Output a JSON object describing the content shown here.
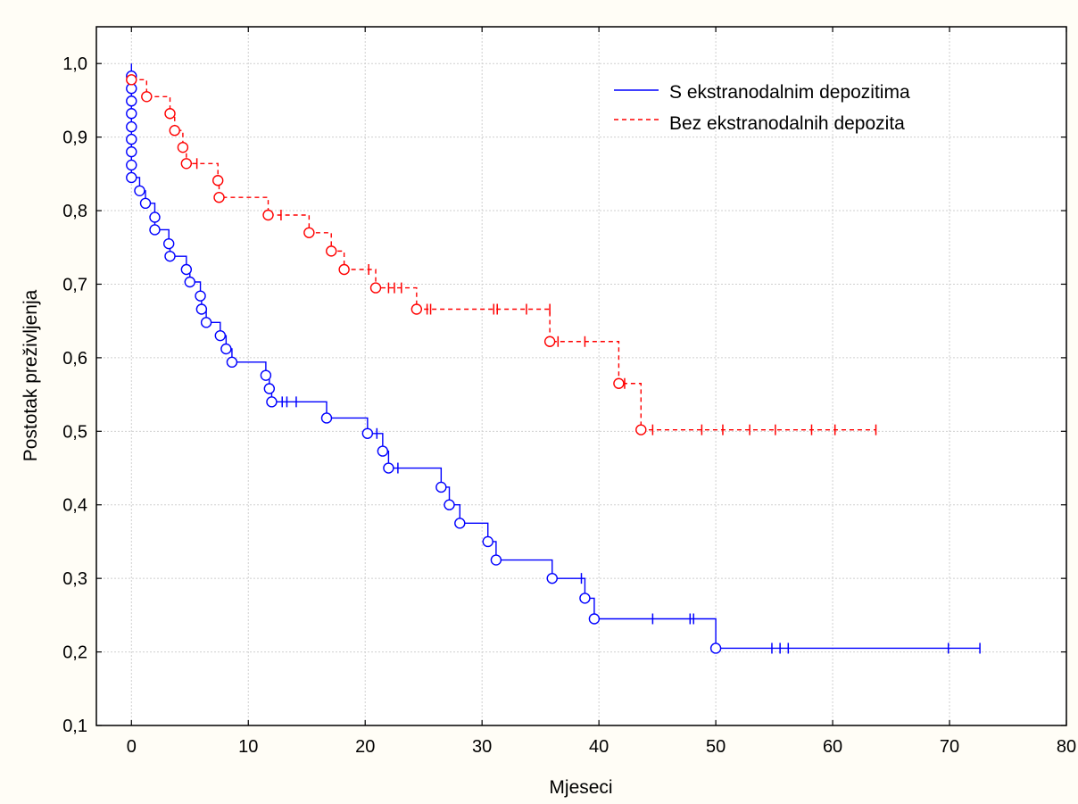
{
  "chart_data": {
    "type": "line",
    "subtype": "kaplan-meier",
    "xlabel": "Mjeseci",
    "ylabel": "Postotak preživljenja",
    "xlim": [
      -3,
      80
    ],
    "ylim": [
      0.1,
      1.05
    ],
    "xticks": [
      0,
      10,
      20,
      30,
      40,
      50,
      60,
      70,
      80
    ],
    "xtick_labels": [
      "0",
      "10",
      "20",
      "30",
      "40",
      "50",
      "60",
      "70",
      "80"
    ],
    "yticks": [
      0.1,
      0.2,
      0.3,
      0.4,
      0.5,
      0.6,
      0.7,
      0.8,
      0.9,
      1.0
    ],
    "ytick_labels": [
      "0,1",
      "0,2",
      "0,3",
      "0,4",
      "0,5",
      "0,6",
      "0,7",
      "0,8",
      "0,9",
      "1,0"
    ],
    "grid": true,
    "legend_position": "top-right",
    "series": [
      {
        "name": "S ekstranodalnim depozitima",
        "color": "#0000ff",
        "line_style": "solid",
        "steps": [
          [
            0,
            1.0
          ],
          [
            0,
            0.845
          ],
          [
            0.7,
            0.827
          ],
          [
            1.2,
            0.81
          ],
          [
            2.0,
            0.791
          ],
          [
            2.0,
            0.774
          ],
          [
            3.2,
            0.755
          ],
          [
            3.3,
            0.738
          ],
          [
            4.7,
            0.72
          ],
          [
            5.0,
            0.703
          ],
          [
            5.9,
            0.684
          ],
          [
            6.0,
            0.666
          ],
          [
            6.4,
            0.648
          ],
          [
            7.6,
            0.63
          ],
          [
            8.1,
            0.612
          ],
          [
            8.6,
            0.594
          ],
          [
            11.5,
            0.576
          ],
          [
            11.8,
            0.558
          ],
          [
            12.0,
            0.54
          ],
          [
            16.7,
            0.518
          ],
          [
            20.2,
            0.497
          ],
          [
            21.5,
            0.473
          ],
          [
            22.0,
            0.45
          ],
          [
            26.5,
            0.424
          ],
          [
            27.2,
            0.4
          ],
          [
            28.1,
            0.375
          ],
          [
            30.5,
            0.35
          ],
          [
            31.2,
            0.325
          ],
          [
            36.0,
            0.3
          ],
          [
            38.8,
            0.273
          ],
          [
            39.6,
            0.245
          ],
          [
            50.0,
            0.205
          ],
          [
            72.6,
            0.205
          ]
        ],
        "events": [
          [
            0,
            0.983
          ],
          [
            0,
            0.966
          ],
          [
            0,
            0.949
          ],
          [
            0,
            0.932
          ],
          [
            0,
            0.914
          ],
          [
            0,
            0.897
          ],
          [
            0,
            0.88
          ],
          [
            0,
            0.862
          ],
          [
            0,
            0.845
          ],
          [
            0.7,
            0.827
          ],
          [
            1.2,
            0.81
          ],
          [
            2.0,
            0.791
          ],
          [
            2.0,
            0.774
          ],
          [
            3.2,
            0.755
          ],
          [
            3.3,
            0.738
          ],
          [
            4.7,
            0.72
          ],
          [
            5.0,
            0.703
          ],
          [
            5.9,
            0.684
          ],
          [
            6.0,
            0.666
          ],
          [
            6.4,
            0.648
          ],
          [
            7.6,
            0.63
          ],
          [
            8.1,
            0.612
          ],
          [
            8.6,
            0.594
          ],
          [
            11.5,
            0.576
          ],
          [
            11.8,
            0.558
          ],
          [
            12.0,
            0.54
          ],
          [
            16.7,
            0.518
          ],
          [
            20.2,
            0.497
          ],
          [
            21.5,
            0.473
          ],
          [
            22.0,
            0.45
          ],
          [
            26.5,
            0.424
          ],
          [
            27.2,
            0.4
          ],
          [
            28.1,
            0.375
          ],
          [
            30.5,
            0.35
          ],
          [
            31.2,
            0.325
          ],
          [
            36.0,
            0.3
          ],
          [
            38.8,
            0.273
          ],
          [
            39.6,
            0.245
          ],
          [
            50.0,
            0.205
          ]
        ],
        "censored": [
          [
            12.9,
            0.54
          ],
          [
            13.3,
            0.54
          ],
          [
            14.1,
            0.54
          ],
          [
            21.0,
            0.497
          ],
          [
            22.8,
            0.45
          ],
          [
            38.5,
            0.3
          ],
          [
            44.6,
            0.245
          ],
          [
            47.8,
            0.245
          ],
          [
            48.1,
            0.245
          ],
          [
            54.8,
            0.205
          ],
          [
            55.5,
            0.205
          ],
          [
            56.2,
            0.205
          ],
          [
            69.9,
            0.205
          ],
          [
            72.6,
            0.205
          ]
        ]
      },
      {
        "name": "Bez ekstranodalnih depozita",
        "color": "#ff0000",
        "line_style": "dashed",
        "steps": [
          [
            0,
            0.978
          ],
          [
            1.3,
            0.955
          ],
          [
            3.3,
            0.932
          ],
          [
            3.7,
            0.909
          ],
          [
            4.4,
            0.886
          ],
          [
            4.7,
            0.864
          ],
          [
            7.4,
            0.841
          ],
          [
            7.5,
            0.818
          ],
          [
            11.7,
            0.794
          ],
          [
            15.2,
            0.77
          ],
          [
            17.1,
            0.745
          ],
          [
            18.2,
            0.72
          ],
          [
            20.9,
            0.695
          ],
          [
            24.4,
            0.666
          ],
          [
            35.8,
            0.622
          ],
          [
            41.7,
            0.565
          ],
          [
            43.6,
            0.502
          ],
          [
            63.7,
            0.502
          ]
        ],
        "events": [
          [
            0,
            0.978
          ],
          [
            1.3,
            0.955
          ],
          [
            3.3,
            0.932
          ],
          [
            3.7,
            0.909
          ],
          [
            4.4,
            0.886
          ],
          [
            4.7,
            0.864
          ],
          [
            7.4,
            0.841
          ],
          [
            7.5,
            0.818
          ],
          [
            11.7,
            0.794
          ],
          [
            15.2,
            0.77
          ],
          [
            17.1,
            0.745
          ],
          [
            18.2,
            0.72
          ],
          [
            20.9,
            0.695
          ],
          [
            24.4,
            0.666
          ],
          [
            35.8,
            0.622
          ],
          [
            41.7,
            0.565
          ],
          [
            43.6,
            0.502
          ]
        ],
        "censored": [
          [
            5.6,
            0.864
          ],
          [
            12.8,
            0.794
          ],
          [
            20.3,
            0.72
          ],
          [
            22.0,
            0.695
          ],
          [
            22.5,
            0.695
          ],
          [
            23.1,
            0.695
          ],
          [
            25.3,
            0.666
          ],
          [
            25.6,
            0.666
          ],
          [
            31.0,
            0.666
          ],
          [
            31.3,
            0.666
          ],
          [
            33.8,
            0.666
          ],
          [
            35.8,
            0.666
          ],
          [
            36.5,
            0.622
          ],
          [
            38.8,
            0.622
          ],
          [
            42.2,
            0.565
          ],
          [
            44.6,
            0.502
          ],
          [
            48.8,
            0.502
          ],
          [
            50.6,
            0.502
          ],
          [
            52.9,
            0.502
          ],
          [
            55.1,
            0.502
          ],
          [
            58.2,
            0.502
          ],
          [
            60.2,
            0.502
          ],
          [
            63.7,
            0.502
          ]
        ]
      }
    ]
  }
}
